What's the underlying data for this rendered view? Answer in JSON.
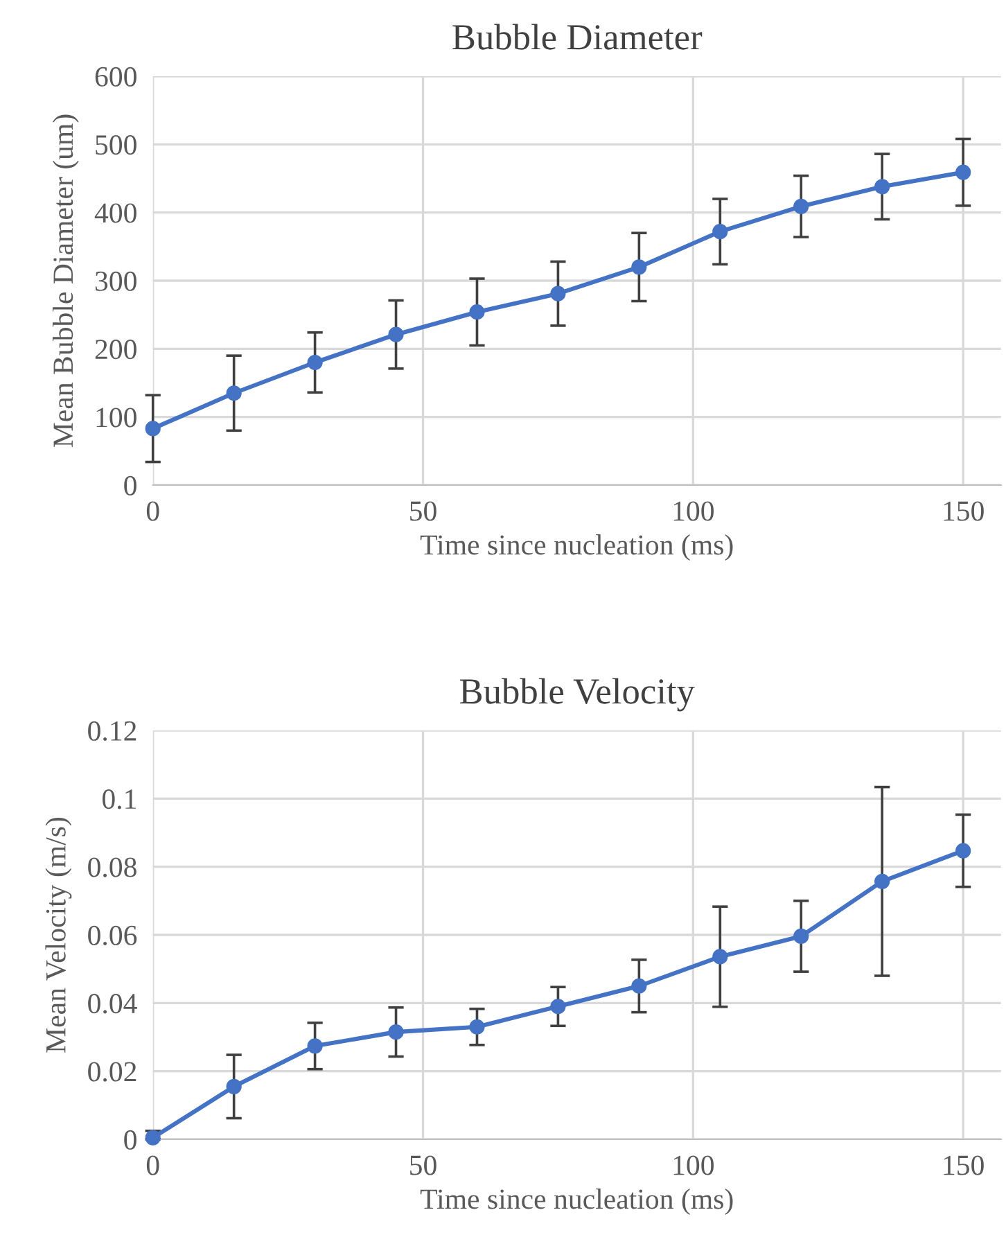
{
  "chart_data": [
    {
      "type": "line",
      "title": "Bubble Diameter",
      "xlabel": "Time since nucleation (ms)",
      "ylabel": "Mean Bubble Diameter (um)",
      "x": [
        0,
        15,
        30,
        45,
        60,
        75,
        90,
        105,
        120,
        135,
        150
      ],
      "series": [
        {
          "color": "#4472c4",
          "values": [
            83,
            135,
            180,
            221,
            254,
            281,
            320,
            372,
            409,
            438,
            459
          ],
          "errors": [
            49,
            55,
            44,
            50,
            49,
            47,
            50,
            48,
            45,
            48,
            49
          ]
        }
      ],
      "xlim": [
        0,
        157
      ],
      "xticks": [
        0,
        50,
        100,
        150
      ],
      "ylim": [
        0,
        600
      ],
      "yticks": [
        0,
        100,
        200,
        300,
        400,
        500,
        600
      ],
      "grid": true,
      "marker": "circle",
      "line_style": "solid"
    },
    {
      "type": "line",
      "title": "Bubble Velocity",
      "xlabel": "Time since nucleation (ms)",
      "ylabel": "Mean Velocity (m/s)",
      "x": [
        0,
        15,
        30,
        45,
        60,
        75,
        90,
        105,
        120,
        135,
        150
      ],
      "series": [
        {
          "color": "#4472c4",
          "values": [
            0.0005,
            0.0155,
            0.0274,
            0.0315,
            0.033,
            0.039,
            0.045,
            0.0536,
            0.0596,
            0.0757,
            0.0847
          ],
          "errors": [
            [
              0,
              0.0025
            ],
            0.0093,
            0.0068,
            0.0072,
            0.0053,
            0.0057,
            0.0077,
            0.0147,
            0.0104,
            0.0277,
            0.0106
          ]
        }
      ],
      "xlim": [
        0,
        157
      ],
      "xticks": [
        0,
        50,
        100,
        150
      ],
      "ylim": [
        0,
        0.12
      ],
      "yticks": [
        0,
        0.02,
        0.04,
        0.06,
        0.08,
        0.1,
        0.12
      ],
      "grid": true,
      "marker": "circle",
      "line_style": "solid"
    }
  ]
}
